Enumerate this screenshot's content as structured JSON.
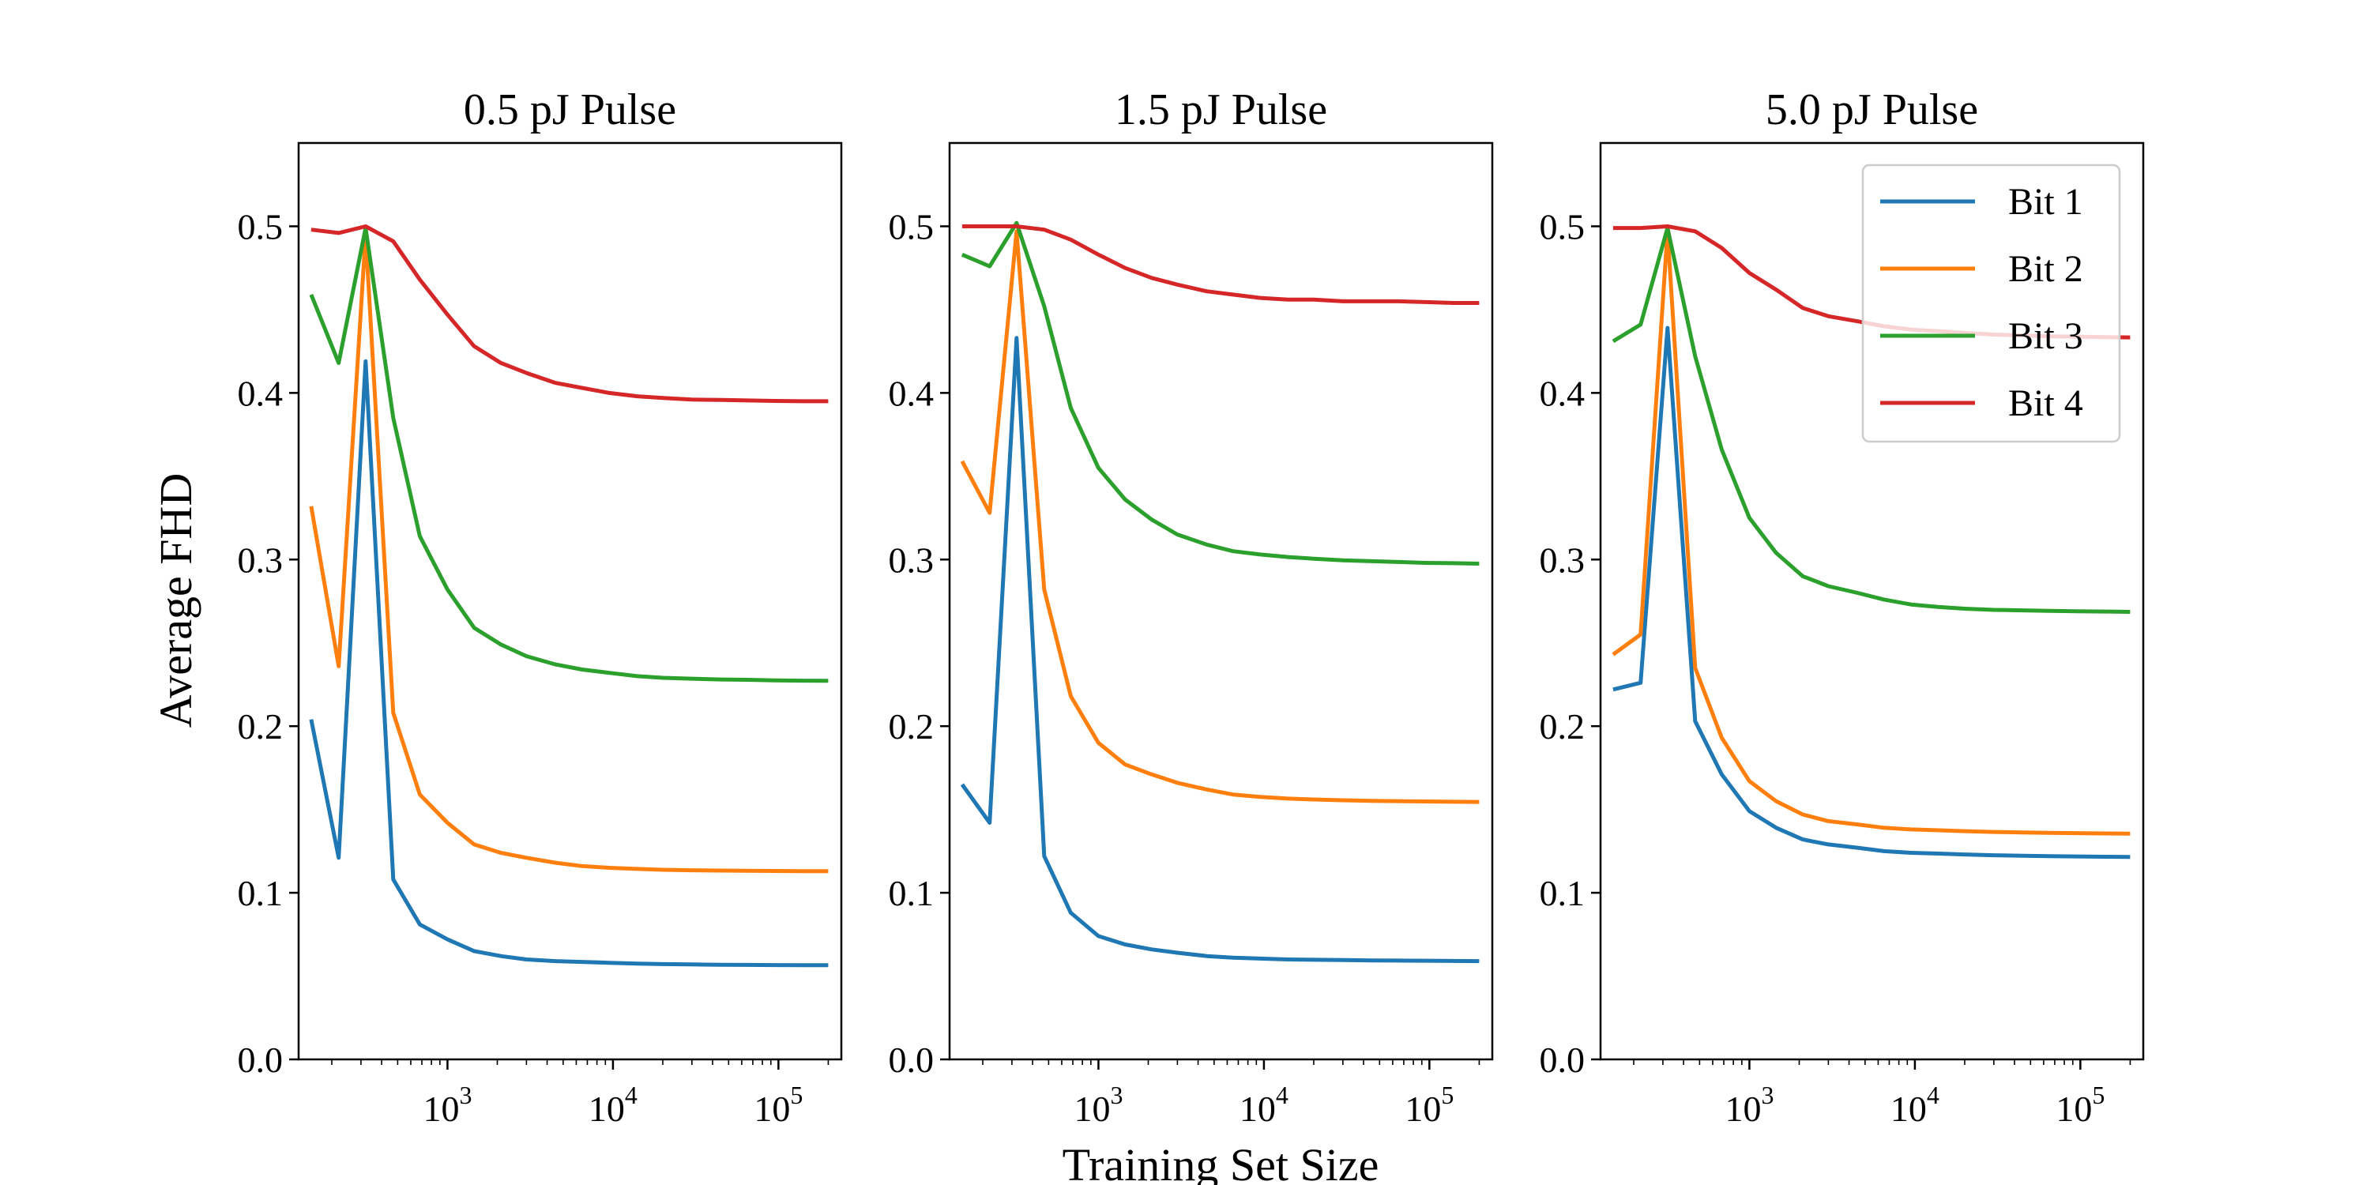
{
  "chart_data": {
    "type": "line",
    "xlabel": "Training Set Size",
    "ylabel": "Average FHD",
    "xscale": "log",
    "xlim": [
      126,
      240000
    ],
    "ylim": [
      0.0,
      0.55
    ],
    "yticks": [
      0.0,
      0.1,
      0.2,
      0.3,
      0.4,
      0.5
    ],
    "ytick_labels": [
      "0.0",
      "0.1",
      "0.2",
      "0.3",
      "0.4",
      "0.5"
    ],
    "xticks": [
      {
        "value": 1000,
        "base": "10",
        "exp": "3"
      },
      {
        "value": 10000,
        "base": "10",
        "exp": "4"
      },
      {
        "value": 100000,
        "base": "10",
        "exp": "5"
      }
    ],
    "grid": false,
    "legend_location": "upper-right of third panel",
    "x": [
      150,
      220,
      320,
      470,
      680,
      1000,
      1450,
      2100,
      3000,
      4500,
      6500,
      9500,
      14000,
      20000,
      30000,
      45000,
      65000,
      95000,
      140000,
      200000
    ],
    "panels": [
      {
        "title": "0.5 pJ Pulse",
        "series": [
          {
            "name": "Bit 1",
            "values": [
              0.204,
              0.121,
              0.419,
              0.108,
              0.081,
              0.072,
              0.065,
              0.062,
              0.06,
              0.059,
              0.0585,
              0.058,
              0.0575,
              0.0572,
              0.057,
              0.0568,
              0.0567,
              0.0566,
              0.0565,
              0.0565
            ]
          },
          {
            "name": "Bit 2",
            "values": [
              0.332,
              0.236,
              0.495,
              0.208,
              0.159,
              0.142,
              0.129,
              0.124,
              0.121,
              0.118,
              0.116,
              0.115,
              0.1143,
              0.1138,
              0.1135,
              0.1133,
              0.1132,
              0.1131,
              0.113,
              0.113
            ]
          },
          {
            "name": "Bit 3",
            "values": [
              0.459,
              0.418,
              0.499,
              0.385,
              0.314,
              0.282,
              0.259,
              0.249,
              0.242,
              0.237,
              0.234,
              0.232,
              0.23,
              0.229,
              0.2285,
              0.228,
              0.2278,
              0.2275,
              0.2273,
              0.2272
            ]
          },
          {
            "name": "Bit 4",
            "values": [
              0.498,
              0.496,
              0.5,
              0.491,
              0.468,
              0.447,
              0.428,
              0.418,
              0.412,
              0.406,
              0.403,
              0.4,
              0.398,
              0.397,
              0.396,
              0.3958,
              0.3955,
              0.3952,
              0.395,
              0.395
            ]
          }
        ]
      },
      {
        "title": "1.5 pJ Pulse",
        "series": [
          {
            "name": "Bit 1",
            "values": [
              0.165,
              0.142,
              0.433,
              0.122,
              0.088,
              0.074,
              0.069,
              0.066,
              0.064,
              0.062,
              0.061,
              0.0605,
              0.06,
              0.0598,
              0.0596,
              0.0594,
              0.0593,
              0.0592,
              0.0591,
              0.059
            ]
          },
          {
            "name": "Bit 2",
            "values": [
              0.359,
              0.328,
              0.497,
              0.282,
              0.218,
              0.19,
              0.177,
              0.171,
              0.166,
              0.162,
              0.159,
              0.1575,
              0.1565,
              0.156,
              0.1555,
              0.1552,
              0.155,
              0.1548,
              0.1546,
              0.1545
            ]
          },
          {
            "name": "Bit 3",
            "values": [
              0.483,
              0.476,
              0.502,
              0.452,
              0.391,
              0.355,
              0.336,
              0.324,
              0.315,
              0.309,
              0.305,
              0.303,
              0.3015,
              0.3005,
              0.2995,
              0.299,
              0.2985,
              0.298,
              0.2978,
              0.2975
            ]
          },
          {
            "name": "Bit 4",
            "values": [
              0.5,
              0.5,
              0.5,
              0.498,
              0.492,
              0.483,
              0.475,
              0.469,
              0.465,
              0.461,
              0.459,
              0.457,
              0.456,
              0.456,
              0.455,
              0.455,
              0.455,
              0.4545,
              0.454,
              0.454
            ]
          }
        ]
      },
      {
        "title": "5.0 pJ Pulse",
        "series": [
          {
            "name": "Bit 1",
            "values": [
              0.222,
              0.226,
              0.439,
              0.203,
              0.171,
              0.149,
              0.139,
              0.132,
              0.129,
              0.127,
              0.125,
              0.124,
              0.1235,
              0.123,
              0.1225,
              0.1222,
              0.122,
              0.1218,
              0.1216,
              0.1215
            ]
          },
          {
            "name": "Bit 2",
            "values": [
              0.243,
              0.255,
              0.497,
              0.235,
              0.193,
              0.167,
              0.155,
              0.147,
              0.143,
              0.141,
              0.139,
              0.138,
              0.1375,
              0.137,
              0.1365,
              0.1362,
              0.136,
              0.1358,
              0.1356,
              0.1355
            ]
          },
          {
            "name": "Bit 3",
            "values": [
              0.431,
              0.441,
              0.499,
              0.422,
              0.366,
              0.325,
              0.304,
              0.29,
              0.284,
              0.28,
              0.276,
              0.273,
              0.2715,
              0.2705,
              0.2698,
              0.2695,
              0.2692,
              0.269,
              0.2688,
              0.2686
            ]
          },
          {
            "name": "Bit 4",
            "values": [
              0.499,
              0.499,
              0.5,
              0.497,
              0.487,
              0.472,
              0.462,
              0.451,
              0.446,
              0.443,
              0.44,
              0.438,
              0.437,
              0.436,
              0.435,
              0.4345,
              0.434,
              0.4338,
              0.4335,
              0.4333
            ]
          }
        ]
      }
    ],
    "colors": {
      "Bit 1": "#1f77b4",
      "Bit 2": "#ff7f0e",
      "Bit 3": "#2ca02c",
      "Bit 4": "#d62728"
    },
    "legend": [
      "Bit 1",
      "Bit 2",
      "Bit 3",
      "Bit 4"
    ]
  }
}
